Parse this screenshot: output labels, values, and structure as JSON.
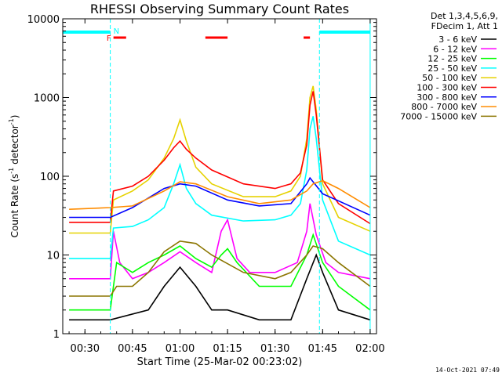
{
  "chart_data": {
    "type": "line",
    "title": "RHESSI Observing Summary Count Rates",
    "xlabel": "Start Time (25-Mar-02 00:23:02)",
    "ylabel": "Count Rate (s⁻¹ detector⁻¹)",
    "ylabel_parts": {
      "main": "Count Rate (s",
      "sup1": "-1",
      "mid": " detector",
      "sup2": "-1",
      "end": ")"
    },
    "yscale": "log",
    "xlim": [
      "00:23",
      "02:02"
    ],
    "ylim": [
      1,
      10000
    ],
    "x_ticks": [
      "00:30",
      "00:45",
      "01:00",
      "01:15",
      "01:30",
      "01:45",
      "02:00"
    ],
    "y_ticks": [
      "1",
      "10",
      "100",
      "1000",
      "10000"
    ],
    "legend": {
      "position": "right",
      "header": [
        "Det 1,3,4,5,6,9,",
        "FDecim 1, Att 1"
      ],
      "entries": [
        {
          "label": "3 - 6 keV",
          "color": "#000000"
        },
        {
          "label": "6 - 12 keV",
          "color": "#ff00ff"
        },
        {
          "label": "12 - 25 keV",
          "color": "#00ff00"
        },
        {
          "label": "25 - 50 keV",
          "color": "#00ffff"
        },
        {
          "label": "50 - 100 keV",
          "color": "#e6d200"
        },
        {
          "label": "100 - 300 keV",
          "color": "#ff0000"
        },
        {
          "label": "300 - 800 keV",
          "color": "#0000ff"
        },
        {
          "label": "800 - 7000 keV",
          "color": "#ff8c00"
        },
        {
          "label": "7000 - 15000 keV",
          "color": "#8b7500"
        }
      ]
    },
    "annotations": {
      "flag_F": "F",
      "flag_N": "N",
      "flare_bars": [
        [
          "00:39",
          "00:43"
        ],
        [
          "01:08",
          "01:15"
        ],
        [
          "01:39",
          "01:41"
        ]
      ],
      "daylight_bars": [
        [
          "00:23",
          "00:38"
        ],
        [
          "01:44",
          "02:00"
        ]
      ],
      "eclipse_lines": [
        "00:38",
        "01:44"
      ],
      "saa_boundaries": [
        "00:23",
        "02:00"
      ]
    },
    "series": [
      {
        "name": "3 - 6 keV",
        "x": [
          "00:25",
          "00:38",
          "00:50",
          "00:55",
          "01:00",
          "01:05",
          "01:10",
          "01:15",
          "01:25",
          "01:35",
          "01:40",
          "01:43",
          "01:45",
          "01:50",
          "02:00"
        ],
        "values": [
          1.5,
          1.5,
          2,
          4,
          7,
          4,
          2,
          2,
          1.5,
          1.5,
          5,
          10,
          6,
          2,
          1.5
        ]
      },
      {
        "name": "6 - 12 keV",
        "x": [
          "00:25",
          "00:38",
          "00:39",
          "00:41",
          "00:45",
          "00:50",
          "00:55",
          "01:00",
          "01:05",
          "01:10",
          "01:13",
          "01:15",
          "01:18",
          "01:22",
          "01:30",
          "01:37",
          "01:40",
          "01:41",
          "01:43",
          "01:46",
          "01:50",
          "02:00"
        ],
        "values": [
          5,
          5,
          20,
          8,
          5,
          6,
          8,
          11,
          8,
          6,
          20,
          28,
          9,
          6,
          6,
          8,
          20,
          45,
          18,
          8,
          6,
          5
        ]
      },
      {
        "name": "12 - 25 keV",
        "x": [
          "00:25",
          "00:38",
          "00:40",
          "00:45",
          "00:50",
          "00:55",
          "01:00",
          "01:05",
          "01:10",
          "01:13",
          "01:15",
          "01:18",
          "01:25",
          "01:35",
          "01:40",
          "01:42",
          "01:45",
          "01:50",
          "02:00"
        ],
        "values": [
          2,
          2,
          8,
          6,
          8,
          10,
          13,
          9,
          7,
          10,
          12,
          8,
          4,
          4,
          10,
          18,
          8,
          4,
          2
        ]
      },
      {
        "name": "25 - 50 keV",
        "x": [
          "00:25",
          "00:38",
          "00:39",
          "00:45",
          "00:50",
          "00:55",
          "00:58",
          "01:00",
          "01:02",
          "01:05",
          "01:10",
          "01:20",
          "01:30",
          "01:35",
          "01:38",
          "01:40",
          "01:41",
          "01:42",
          "01:43",
          "01:45",
          "01:50",
          "02:00"
        ],
        "values": [
          9,
          9,
          22,
          23,
          28,
          40,
          80,
          140,
          70,
          45,
          32,
          27,
          28,
          32,
          45,
          120,
          400,
          580,
          300,
          50,
          15,
          10
        ]
      },
      {
        "name": "50 - 100 keV",
        "x": [
          "00:25",
          "00:38",
          "00:39",
          "00:45",
          "00:50",
          "00:55",
          "00:58",
          "01:00",
          "01:02",
          "01:05",
          "01:10",
          "01:20",
          "01:30",
          "01:35",
          "01:38",
          "01:40",
          "01:41",
          "01:42",
          "01:43",
          "01:45",
          "01:50",
          "02:00"
        ],
        "values": [
          19,
          19,
          50,
          65,
          90,
          170,
          300,
          520,
          280,
          130,
          80,
          55,
          55,
          65,
          100,
          300,
          1000,
          1400,
          700,
          80,
          30,
          20
        ]
      },
      {
        "name": "100 - 300 keV",
        "x": [
          "00:25",
          "00:38",
          "00:39",
          "00:45",
          "00:50",
          "00:55",
          "00:58",
          "01:00",
          "01:02",
          "01:05",
          "01:10",
          "01:20",
          "01:30",
          "01:35",
          "01:38",
          "01:40",
          "01:41",
          "01:42",
          "01:43",
          "01:45",
          "01:50",
          "02:00"
        ],
        "values": [
          26,
          26,
          65,
          75,
          100,
          160,
          230,
          280,
          220,
          170,
          120,
          80,
          70,
          80,
          110,
          250,
          800,
          1200,
          600,
          90,
          45,
          25
        ]
      },
      {
        "name": "300 - 800 keV",
        "x": [
          "00:25",
          "00:38",
          "00:45",
          "00:55",
          "01:00",
          "01:05",
          "01:15",
          "01:25",
          "01:35",
          "01:40",
          "01:41",
          "01:42",
          "01:45",
          "02:00"
        ],
        "values": [
          30,
          30,
          40,
          70,
          80,
          75,
          50,
          42,
          45,
          80,
          95,
          85,
          60,
          32
        ]
      },
      {
        "name": "800 - 7000 keV",
        "x": [
          "00:25",
          "00:38",
          "00:45",
          "00:55",
          "01:00",
          "01:05",
          "01:15",
          "01:25",
          "01:35",
          "01:40",
          "01:42",
          "01:45",
          "01:50",
          "02:00"
        ],
        "values": [
          38,
          40,
          42,
          65,
          85,
          80,
          55,
          45,
          50,
          65,
          80,
          88,
          70,
          40
        ]
      },
      {
        "name": "7000 - 15000 keV",
        "x": [
          "00:25",
          "00:38",
          "00:40",
          "00:45",
          "00:50",
          "00:55",
          "01:00",
          "01:05",
          "01:10",
          "01:20",
          "01:30",
          "01:35",
          "01:40",
          "01:42",
          "01:45",
          "01:50",
          "02:00"
        ],
        "values": [
          3,
          3,
          4,
          4,
          6,
          11,
          15,
          14,
          10,
          6,
          5,
          6,
          10,
          13,
          12,
          8,
          4
        ]
      }
    ]
  },
  "footer": {
    "timestamp": "14-Oct-2021 07:49"
  }
}
